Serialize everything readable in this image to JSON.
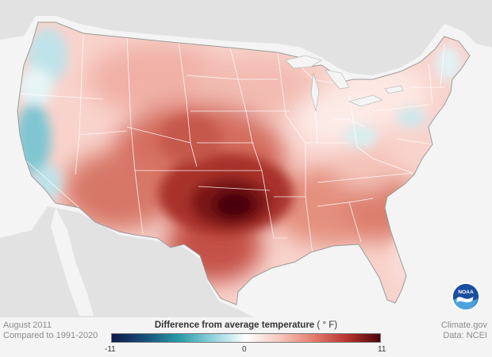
{
  "map": {
    "title": "",
    "date": "August 2011",
    "baseline": "Compared to 1991-2020",
    "credit_site": "Climate.gov",
    "credit_data": "Data: NCEI",
    "logo_text": "NOAA"
  },
  "legend": {
    "title": "Difference from average temperature",
    "unit": "( ° F)",
    "min_label": "-11",
    "mid_label": "0",
    "max_label": "11",
    "min": -11,
    "max": 11,
    "colors": [
      "#0c1a4e",
      "#17507a",
      "#2a9aa8",
      "#8fd3dc",
      "#ffffff",
      "#f7c6bc",
      "#e57f6e",
      "#b8352e",
      "#4a0508"
    ]
  },
  "anomalies": [
    {
      "region": "Pacific Northwest coast",
      "value": -3
    },
    {
      "region": "California coast",
      "value": -4
    },
    {
      "region": "Northern Great Plains",
      "value": 3
    },
    {
      "region": "Central Great Plains",
      "value": 6
    },
    {
      "region": "Southern Plains (Oklahoma/Texas)",
      "value": 11
    },
    {
      "region": "Desert Southwest",
      "value": 6
    },
    {
      "region": "Gulf Coast",
      "value": 6
    },
    {
      "region": "Southeast",
      "value": 4
    },
    {
      "region": "Ohio Valley",
      "value": -1
    },
    {
      "region": "Mid-Atlantic",
      "value": -1
    },
    {
      "region": "New England",
      "value": 1
    }
  ]
}
